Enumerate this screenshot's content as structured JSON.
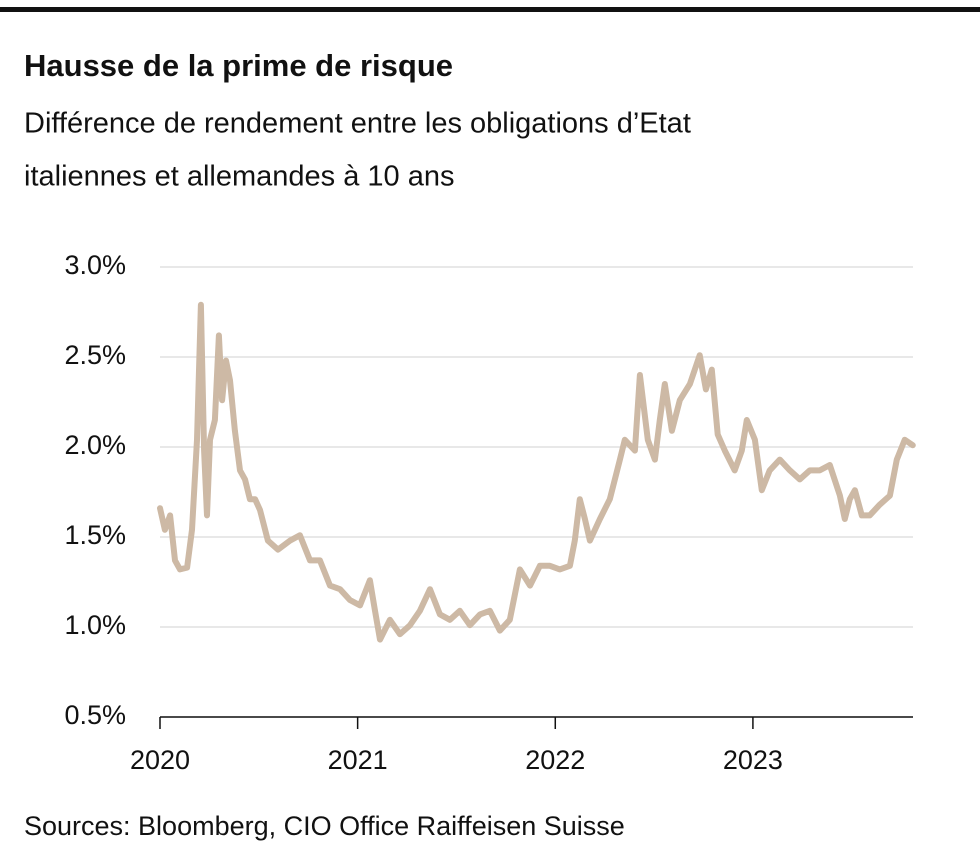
{
  "chart_data": {
    "type": "line",
    "title": "Hausse de la prime de risque",
    "subtitle": [
      "Différence de rendement entre les obligations d’Etat",
      "italiennes et allemandes à 10 ans"
    ],
    "source": "Sources: Bloomberg, CIO Office Raiffeisen Suisse",
    "xlim": [
      2020,
      2023.81
    ],
    "xticks": [
      2020,
      2021,
      2022,
      2023
    ],
    "ylim": [
      0.5,
      3.0
    ],
    "yticks": [
      {
        "value": 0.5,
        "label": "0.5%"
      },
      {
        "value": 1.0,
        "label": "1.0%"
      },
      {
        "value": 1.5,
        "label": "1.5%"
      },
      {
        "value": 2.0,
        "label": "2.0%"
      },
      {
        "value": 2.5,
        "label": "2.5%"
      },
      {
        "value": 3.0,
        "label": "3.0%"
      }
    ],
    "grid": true,
    "color": "#cdb9a5",
    "x": [
      2020.0,
      2020.025,
      2020.051,
      2020.076,
      2020.101,
      2020.137,
      2020.162,
      2020.187,
      2020.207,
      2020.223,
      2020.238,
      2020.253,
      2020.278,
      2020.298,
      2020.314,
      2020.334,
      2020.354,
      2020.379,
      2020.405,
      2020.43,
      2020.455,
      2020.481,
      2020.506,
      2020.546,
      2020.597,
      2020.658,
      2020.708,
      2020.759,
      2020.809,
      2020.86,
      2020.911,
      2020.961,
      2021.012,
      2021.062,
      2021.088,
      2021.113,
      2021.163,
      2021.214,
      2021.265,
      2021.315,
      2021.366,
      2021.416,
      2021.467,
      2021.517,
      2021.568,
      2021.619,
      2021.669,
      2021.72,
      2021.77,
      2021.821,
      2021.872,
      2021.922,
      2021.973,
      2022.023,
      2022.074,
      2022.099,
      2022.124,
      2022.15,
      2022.175,
      2022.226,
      2022.276,
      2022.327,
      2022.352,
      2022.403,
      2022.428,
      2022.468,
      2022.504,
      2022.529,
      2022.554,
      2022.59,
      2022.63,
      2022.681,
      2022.731,
      2022.762,
      2022.792,
      2022.822,
      2022.858,
      2022.908,
      2022.944,
      2022.969,
      2023.01,
      2023.045,
      2023.085,
      2023.136,
      2023.187,
      2023.237,
      2023.288,
      2023.338,
      2023.389,
      2023.44,
      2023.465,
      2023.49,
      2023.516,
      2023.551,
      2023.591,
      2023.642,
      2023.693,
      2023.728,
      2023.768,
      2023.809
    ],
    "values": [
      1.66,
      1.54,
      1.62,
      1.37,
      1.32,
      1.33,
      1.54,
      2.04,
      2.79,
      1.98,
      1.62,
      2.04,
      2.15,
      2.62,
      2.26,
      2.48,
      2.37,
      2.09,
      1.87,
      1.82,
      1.71,
      1.71,
      1.65,
      1.48,
      1.43,
      1.48,
      1.51,
      1.37,
      1.37,
      1.23,
      1.21,
      1.15,
      1.12,
      1.26,
      1.09,
      0.93,
      1.04,
      0.96,
      1.01,
      1.09,
      1.21,
      1.07,
      1.04,
      1.09,
      1.01,
      1.07,
      1.09,
      0.98,
      1.04,
      1.32,
      1.23,
      1.34,
      1.34,
      1.32,
      1.34,
      1.48,
      1.71,
      1.6,
      1.48,
      1.6,
      1.71,
      1.93,
      2.04,
      1.98,
      2.4,
      2.04,
      1.93,
      2.15,
      2.35,
      2.09,
      2.26,
      2.35,
      2.51,
      2.32,
      2.43,
      2.07,
      1.98,
      1.87,
      1.98,
      2.15,
      2.04,
      1.76,
      1.87,
      1.93,
      1.87,
      1.82,
      1.87,
      1.87,
      1.9,
      1.73,
      1.6,
      1.71,
      1.76,
      1.62,
      1.62,
      1.68,
      1.73,
      1.93,
      2.04,
      2.01
    ]
  }
}
